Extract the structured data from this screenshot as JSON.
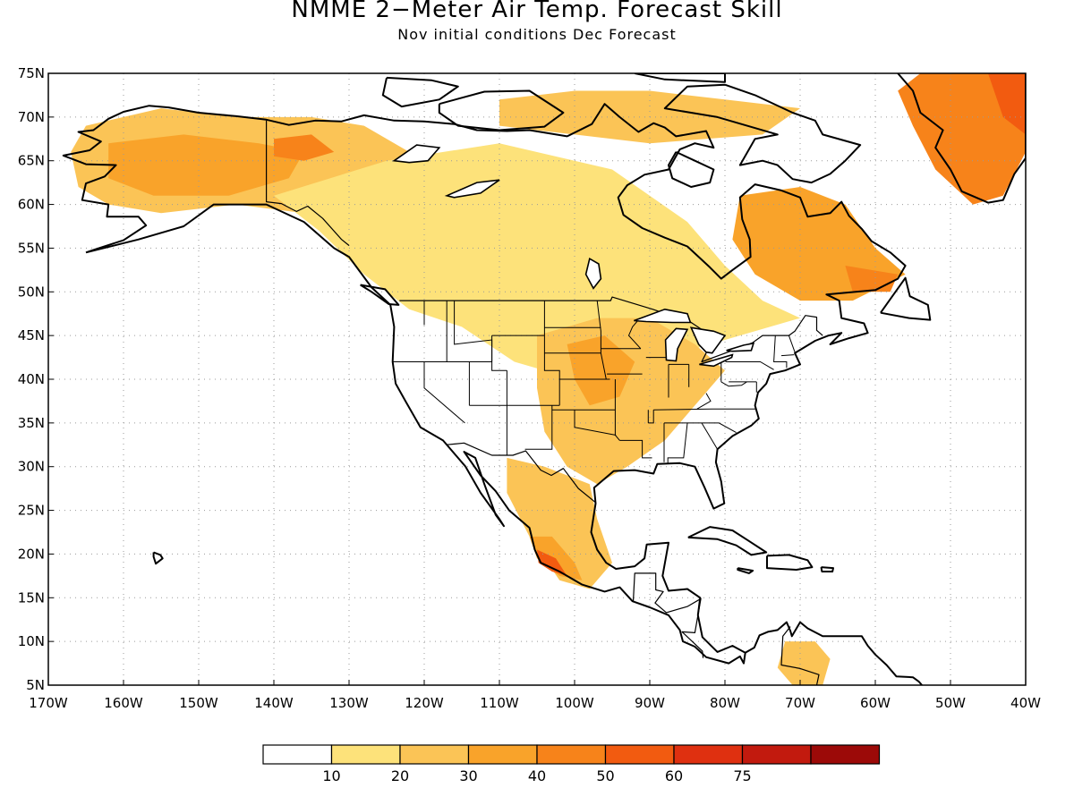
{
  "title": "NMME 2−Meter Air Temp. Forecast Skill",
  "subtitle": "Nov initial conditions  Dec Forecast",
  "map": {
    "lon_range": [
      -170,
      -40
    ],
    "lat_range": [
      5,
      75
    ],
    "grid": "dotted",
    "lat_labels": [
      "5N",
      "10N",
      "15N",
      "20N",
      "25N",
      "30N",
      "35N",
      "40N",
      "45N",
      "50N",
      "55N",
      "60N",
      "65N",
      "70N",
      "75N"
    ],
    "lon_labels": [
      "170W",
      "160W",
      "150W",
      "140W",
      "130W",
      "120W",
      "110W",
      "100W",
      "90W",
      "80W",
      "70W",
      "60W",
      "50W",
      "40W"
    ]
  },
  "colorbar": {
    "colors": [
      "#ffffff",
      "#fde27a",
      "#fbc456",
      "#f9a32a",
      "#f7831a",
      "#f25b10",
      "#df3010",
      "#c21a0e",
      "#9c0a08"
    ],
    "labels": [
      "10",
      "20",
      "30",
      "40",
      "50",
      "60",
      "75"
    ]
  },
  "skill_regions": [
    {
      "name": "alaska-yukon",
      "level": 2,
      "pts": [
        [
          -165,
          69
        ],
        [
          -155,
          71
        ],
        [
          -145,
          70
        ],
        [
          -135,
          70
        ],
        [
          -128,
          69
        ],
        [
          -122,
          66
        ],
        [
          -118,
          64
        ],
        [
          -112,
          62
        ],
        [
          -108,
          59
        ],
        [
          -114,
          56
        ],
        [
          -120,
          53
        ],
        [
          -124,
          52
        ],
        [
          -130,
          55
        ],
        [
          -136,
          59
        ],
        [
          -145,
          60
        ],
        [
          -155,
          59
        ],
        [
          -162,
          60
        ],
        [
          -166,
          62
        ],
        [
          -167,
          66
        ]
      ]
    },
    {
      "name": "alaska-core",
      "level": 3,
      "pts": [
        [
          -162,
          67
        ],
        [
          -152,
          68
        ],
        [
          -142,
          67
        ],
        [
          -136,
          66
        ],
        [
          -138,
          63
        ],
        [
          -146,
          61
        ],
        [
          -156,
          61
        ],
        [
          -162,
          63
        ]
      ]
    },
    {
      "name": "yukon-max",
      "level": 4,
      "pts": [
        [
          -140,
          67.5
        ],
        [
          -135,
          68
        ],
        [
          -132,
          66
        ],
        [
          -136,
          65
        ],
        [
          -140,
          65.5
        ]
      ]
    },
    {
      "name": "canada-belt",
      "level": 1,
      "pts": [
        [
          -140,
          61
        ],
        [
          -125,
          65
        ],
        [
          -110,
          67
        ],
        [
          -95,
          64
        ],
        [
          -85,
          58
        ],
        [
          -80,
          53
        ],
        [
          -75,
          49
        ],
        [
          -70,
          47
        ],
        [
          -82,
          44
        ],
        [
          -90,
          42
        ],
        [
          -100,
          40
        ],
        [
          -108,
          42
        ],
        [
          -115,
          46
        ],
        [
          -122,
          48
        ],
        [
          -128,
          52
        ],
        [
          -134,
          57
        ]
      ]
    },
    {
      "name": "arctic-islands",
      "level": 2,
      "pts": [
        [
          -110,
          72
        ],
        [
          -100,
          73
        ],
        [
          -90,
          73
        ],
        [
          -80,
          72
        ],
        [
          -70,
          71
        ],
        [
          -75,
          68
        ],
        [
          -90,
          67
        ],
        [
          -100,
          68
        ],
        [
          -110,
          69
        ]
      ]
    },
    {
      "name": "central-us",
      "level": 2,
      "pts": [
        [
          -105,
          45
        ],
        [
          -97,
          47
        ],
        [
          -90,
          47
        ],
        [
          -84,
          44
        ],
        [
          -80,
          41
        ],
        [
          -84,
          37
        ],
        [
          -88,
          33
        ],
        [
          -93,
          30
        ],
        [
          -97,
          28
        ],
        [
          -101,
          30
        ],
        [
          -104,
          34
        ],
        [
          -105,
          39
        ]
      ]
    },
    {
      "name": "plains-core",
      "level": 3,
      "pts": [
        [
          -101,
          44
        ],
        [
          -96,
          45
        ],
        [
          -92,
          42
        ],
        [
          -94,
          38
        ],
        [
          -98,
          37
        ],
        [
          -100,
          40
        ]
      ]
    },
    {
      "name": "eastern-canada",
      "level": 3,
      "pts": [
        [
          -78,
          61
        ],
        [
          -70,
          62
        ],
        [
          -64,
          60
        ],
        [
          -60,
          55
        ],
        [
          -56,
          52
        ],
        [
          -63,
          49
        ],
        [
          -70,
          49
        ],
        [
          -76,
          52
        ],
        [
          -79,
          56
        ]
      ]
    },
    {
      "name": "labrador-max",
      "level": 4,
      "pts": [
        [
          -64,
          53
        ],
        [
          -57,
          52
        ],
        [
          -58,
          50
        ],
        [
          -63,
          50
        ]
      ]
    },
    {
      "name": "mexico",
      "level": 2,
      "pts": [
        [
          -109,
          31
        ],
        [
          -104,
          30
        ],
        [
          -98,
          28
        ],
        [
          -97,
          24
        ],
        [
          -95,
          19
        ],
        [
          -98,
          16
        ],
        [
          -102,
          17
        ],
        [
          -106,
          22
        ],
        [
          -109,
          27
        ]
      ]
    },
    {
      "name": "mexico-core",
      "level": 3,
      "pts": [
        [
          -106,
          22
        ],
        [
          -103,
          22
        ],
        [
          -100,
          19
        ],
        [
          -99,
          17
        ],
        [
          -102,
          17.5
        ],
        [
          -105,
          19.5
        ]
      ]
    },
    {
      "name": "mexico-max",
      "level": 5,
      "pts": [
        [
          -105,
          20.5
        ],
        [
          -102.5,
          19.5
        ],
        [
          -101,
          17.5
        ],
        [
          -103,
          18
        ],
        [
          -104.8,
          19
        ]
      ]
    },
    {
      "name": "greenland",
      "level": 4,
      "pts": [
        [
          -54,
          75
        ],
        [
          -40,
          75
        ],
        [
          -40,
          66
        ],
        [
          -43,
          61
        ],
        [
          -47,
          60
        ],
        [
          -52,
          64
        ],
        [
          -55,
          69
        ],
        [
          -57,
          73
        ]
      ]
    },
    {
      "name": "greenland-max",
      "level": 5,
      "pts": [
        [
          -45,
          75
        ],
        [
          -40,
          75
        ],
        [
          -40,
          68
        ],
        [
          -43,
          70
        ]
      ]
    },
    {
      "name": "venezuela",
      "level": 2,
      "pts": [
        [
          -72,
          10
        ],
        [
          -68,
          10
        ],
        [
          -66,
          8
        ],
        [
          -67,
          5
        ],
        [
          -71,
          5
        ],
        [
          -73,
          7
        ]
      ]
    }
  ]
}
